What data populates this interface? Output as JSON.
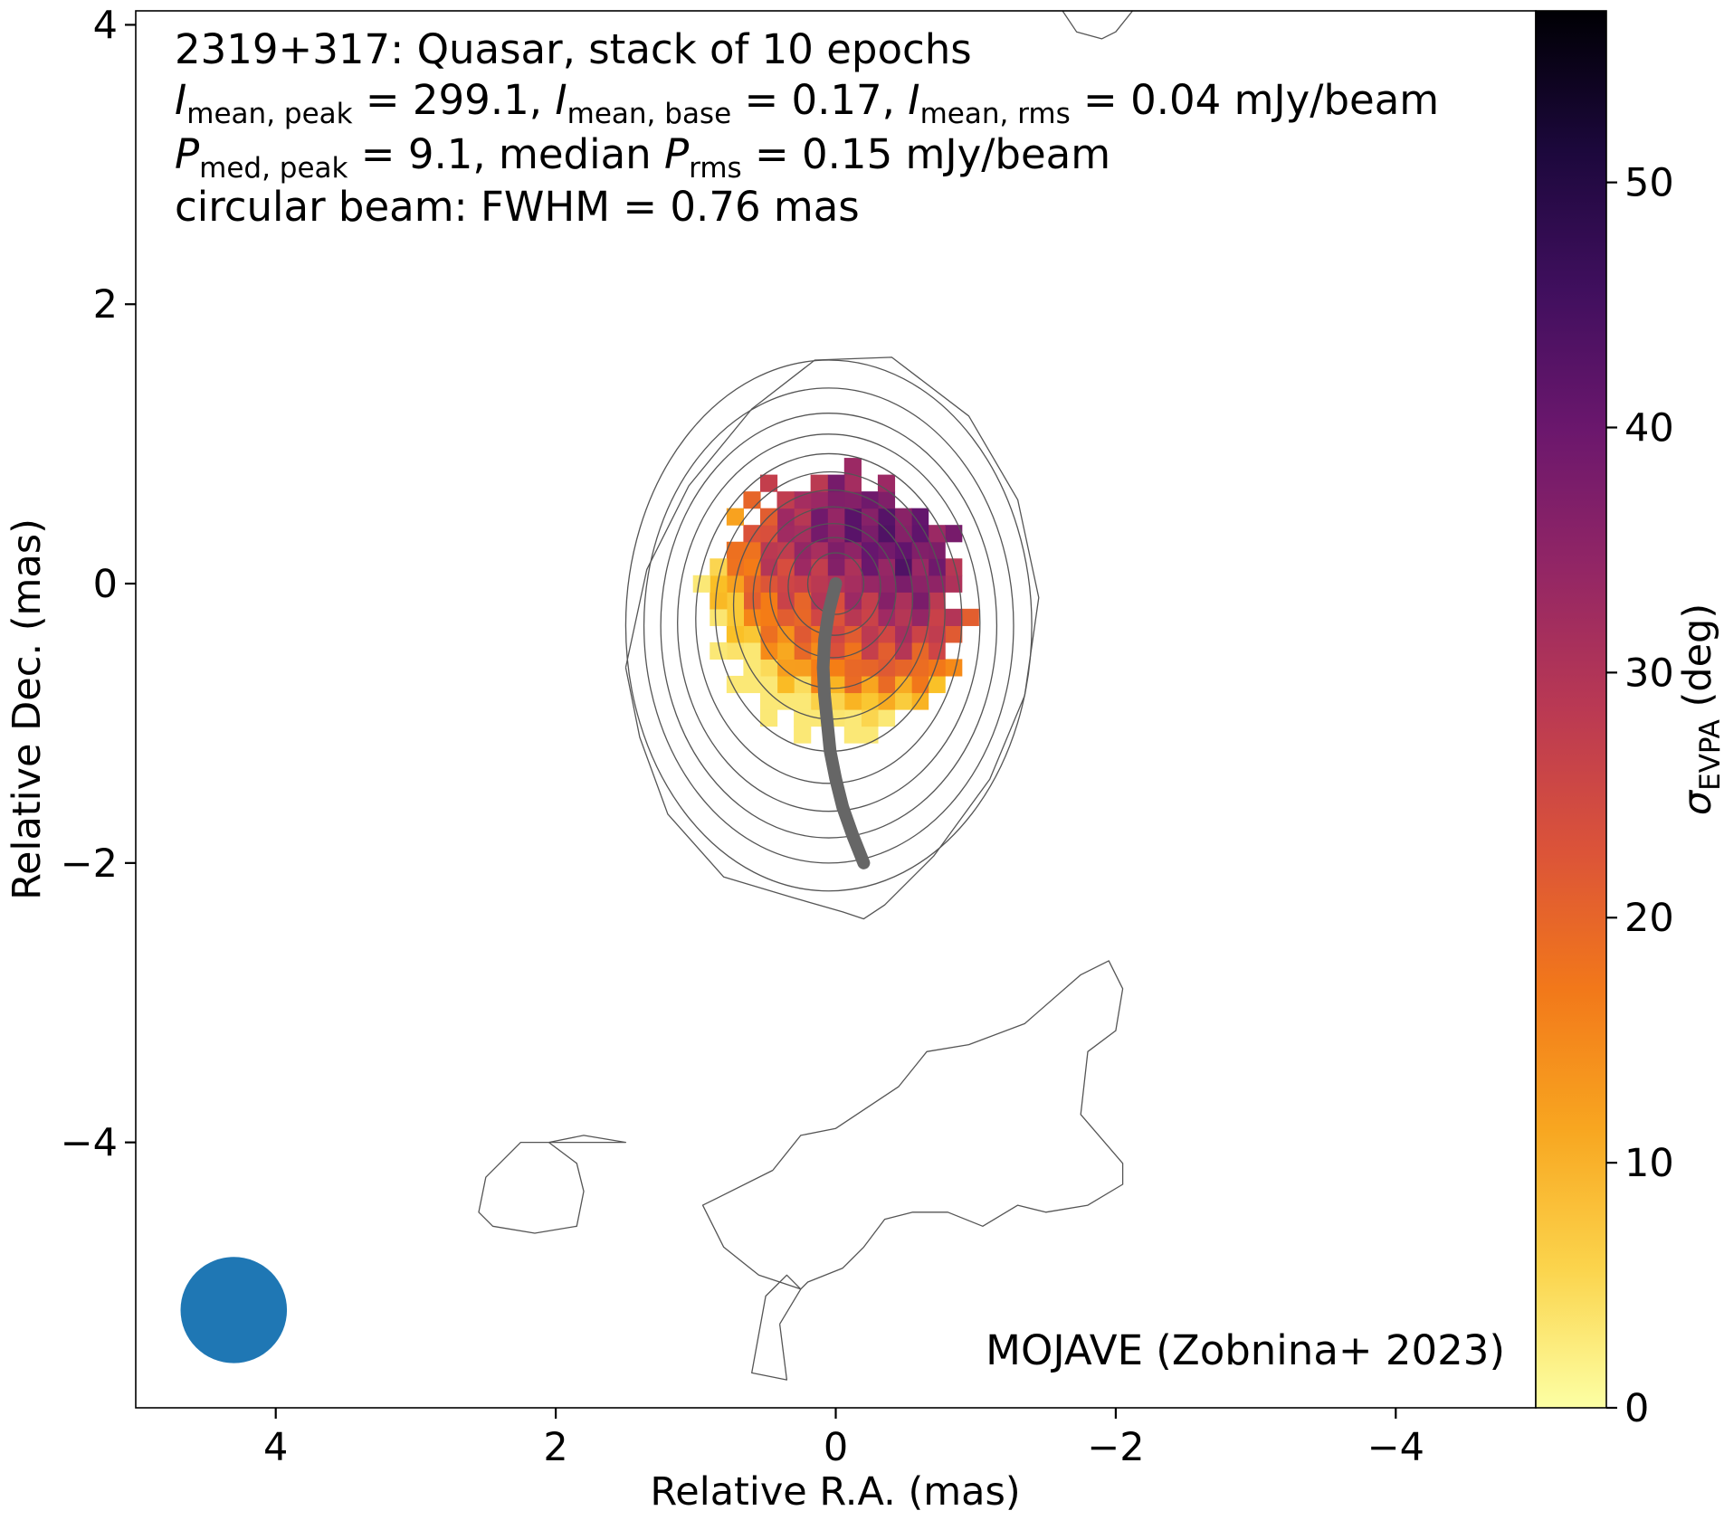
{
  "chart_data": {
    "type": "heatmap",
    "title": "",
    "annotation_lines": [
      {
        "text": "2319+317: Quasar, stack of 10 epochs"
      },
      {
        "parts": [
          {
            "t": "I",
            "style": "italic"
          },
          {
            "t": "mean, peak",
            "style": "sub"
          },
          {
            "t": " = 299.1, "
          },
          {
            "t": "I",
            "style": "italic"
          },
          {
            "t": "mean, base",
            "style": "sub"
          },
          {
            "t": " = 0.17, "
          },
          {
            "t": "I",
            "style": "italic"
          },
          {
            "t": "mean, rms",
            "style": "sub"
          },
          {
            "t": " = 0.04 mJy/beam"
          }
        ]
      },
      {
        "parts": [
          {
            "t": "P",
            "style": "italic"
          },
          {
            "t": "med, peak",
            "style": "sub"
          },
          {
            "t": " = 9.1, median "
          },
          {
            "t": "P",
            "style": "italic"
          },
          {
            "t": "rms",
            "style": "sub"
          },
          {
            "t": " = 0.15 mJy/beam"
          }
        ]
      },
      {
        "text": "circular beam: FWHM = 0.76 mas"
      }
    ],
    "credit": "MOJAVE (Zobnina+ 2023)",
    "xlabel": "Relative R.A. (mas)",
    "ylabel": "Relative Dec. (mas)",
    "xlim": [
      5,
      -5
    ],
    "ylim": [
      -5.9,
      4.1
    ],
    "xticks": [
      4,
      2,
      0,
      -2,
      -4
    ],
    "yticks": [
      4,
      2,
      0,
      -2,
      -4
    ],
    "xtick_labels": [
      "4",
      "2",
      "0",
      "−2",
      "−4"
    ],
    "ytick_labels": [
      "4",
      "2",
      "0",
      "−2",
      "−4"
    ],
    "colorbar": {
      "label_symbol": "σ",
      "label_sub": "EVPA",
      "label_suffix": " (deg)",
      "range": [
        0,
        57
      ],
      "ticks": [
        0,
        10,
        20,
        30,
        40,
        50
      ],
      "tick_labels": [
        "0",
        "10",
        "20",
        "30",
        "40",
        "50"
      ],
      "colormap": "inferno_r"
    },
    "beam": {
      "x": 4.3,
      "y": -5.2,
      "fwhm": 0.76,
      "color": "#1f77b4"
    },
    "contours": {
      "color": "#555555",
      "core_levels": [
        {
          "cx": 0.05,
          "cy": -0.3,
          "rx": 1.45,
          "ry": 1.9
        },
        {
          "cx": 0.05,
          "cy": -0.3,
          "rx": 1.32,
          "ry": 1.7
        },
        {
          "cx": 0.05,
          "cy": -0.3,
          "rx": 1.2,
          "ry": 1.52
        },
        {
          "cx": 0.05,
          "cy": -0.28,
          "rx": 1.08,
          "ry": 1.35
        },
        {
          "cx": 0.05,
          "cy": -0.25,
          "rx": 0.95,
          "ry": 1.18
        },
        {
          "cx": 0.04,
          "cy": -0.2,
          "rx": 0.82,
          "ry": 1.0
        },
        {
          "cx": 0.03,
          "cy": -0.15,
          "rx": 0.7,
          "ry": 0.82
        },
        {
          "cx": 0.02,
          "cy": -0.1,
          "rx": 0.57,
          "ry": 0.65
        },
        {
          "cx": 0.02,
          "cy": -0.05,
          "rx": 0.45,
          "ry": 0.48
        },
        {
          "cx": 0.01,
          "cy": -0.02,
          "rx": 0.33,
          "ry": 0.35
        },
        {
          "cx": 0.0,
          "cy": 0.0,
          "rx": 0.2,
          "ry": 0.22
        }
      ],
      "outer": [
        [
          [
            1.5,
            -0.6
          ],
          [
            1.35,
            0.1
          ],
          [
            1.05,
            0.7
          ],
          [
            0.6,
            1.25
          ],
          [
            0.15,
            1.6
          ],
          [
            -0.4,
            1.62
          ],
          [
            -0.95,
            1.2
          ],
          [
            -1.3,
            0.6
          ],
          [
            -1.45,
            -0.1
          ],
          [
            -1.35,
            -0.8
          ],
          [
            -1.1,
            -1.4
          ],
          [
            -0.7,
            -1.95
          ],
          [
            -0.35,
            -2.3
          ],
          [
            -0.2,
            -2.4
          ],
          [
            -0.05,
            -2.35
          ],
          [
            0.3,
            -2.25
          ],
          [
            0.8,
            -2.1
          ],
          [
            1.2,
            -1.65
          ],
          [
            1.4,
            -1.1
          ],
          [
            1.5,
            -0.6
          ]
        ],
        [
          [
            0.45,
            -4.2
          ],
          [
            0.25,
            -3.95
          ],
          [
            0.0,
            -3.9
          ],
          [
            -0.45,
            -3.6
          ],
          [
            -0.65,
            -3.35
          ],
          [
            -0.95,
            -3.3
          ],
          [
            -1.35,
            -3.15
          ],
          [
            -1.75,
            -2.8
          ],
          [
            -1.95,
            -2.7
          ],
          [
            -2.05,
            -2.9
          ],
          [
            -2.0,
            -3.2
          ],
          [
            -1.8,
            -3.35
          ],
          [
            -1.75,
            -3.8
          ],
          [
            -2.05,
            -4.15
          ],
          [
            -2.05,
            -4.3
          ],
          [
            -1.8,
            -4.45
          ],
          [
            -1.5,
            -4.5
          ],
          [
            -1.3,
            -4.45
          ],
          [
            -1.05,
            -4.6
          ],
          [
            -0.8,
            -4.5
          ],
          [
            -0.55,
            -4.5
          ],
          [
            -0.35,
            -4.55
          ],
          [
            -0.2,
            -4.75
          ],
          [
            -0.05,
            -4.9
          ],
          [
            0.2,
            -5.0
          ],
          [
            0.25,
            -5.05
          ],
          [
            0.55,
            -4.95
          ],
          [
            0.8,
            -4.75
          ],
          [
            0.95,
            -4.45
          ],
          [
            0.85,
            -4.4
          ],
          [
            0.45,
            -4.2
          ]
        ],
        [
          [
            2.05,
            -4.0
          ],
          [
            1.8,
            -3.95
          ],
          [
            1.5,
            -4.0
          ],
          [
            2.25,
            -4.0
          ],
          [
            2.5,
            -4.25
          ],
          [
            2.55,
            -4.5
          ],
          [
            2.45,
            -4.6
          ],
          [
            2.15,
            -4.65
          ],
          [
            1.85,
            -4.6
          ],
          [
            1.8,
            -4.35
          ],
          [
            1.85,
            -4.15
          ],
          [
            2.05,
            -4.0
          ]
        ],
        [
          [
            0.4,
            -5.3
          ],
          [
            0.35,
            -5.7
          ],
          [
            0.6,
            -5.65
          ],
          [
            0.5,
            -5.1
          ],
          [
            0.35,
            -4.95
          ],
          [
            0.25,
            -5.05
          ],
          [
            0.4,
            -5.3
          ]
        ],
        [
          [
            -1.62,
            4.1
          ],
          [
            -1.72,
            3.95
          ],
          [
            -1.9,
            3.9
          ],
          [
            -2.0,
            3.95
          ],
          [
            -2.12,
            4.1
          ]
        ]
      ]
    },
    "pixel_map": {
      "pixel_size_mas": 0.12,
      "center": [
        0.0,
        0.0
      ],
      "radius_mas": 0.92,
      "value_min": 3,
      "value_max": 52
    },
    "ridgeline": {
      "color": "#666666",
      "points": [
        [
          0.0,
          0.0
        ],
        [
          0.05,
          -0.2
        ],
        [
          0.08,
          -0.4
        ],
        [
          0.09,
          -0.6
        ],
        [
          0.08,
          -0.8
        ],
        [
          0.06,
          -1.0
        ],
        [
          0.04,
          -1.2
        ],
        [
          0.0,
          -1.4
        ],
        [
          -0.05,
          -1.6
        ],
        [
          -0.12,
          -1.8
        ],
        [
          -0.2,
          -2.0
        ]
      ]
    }
  }
}
